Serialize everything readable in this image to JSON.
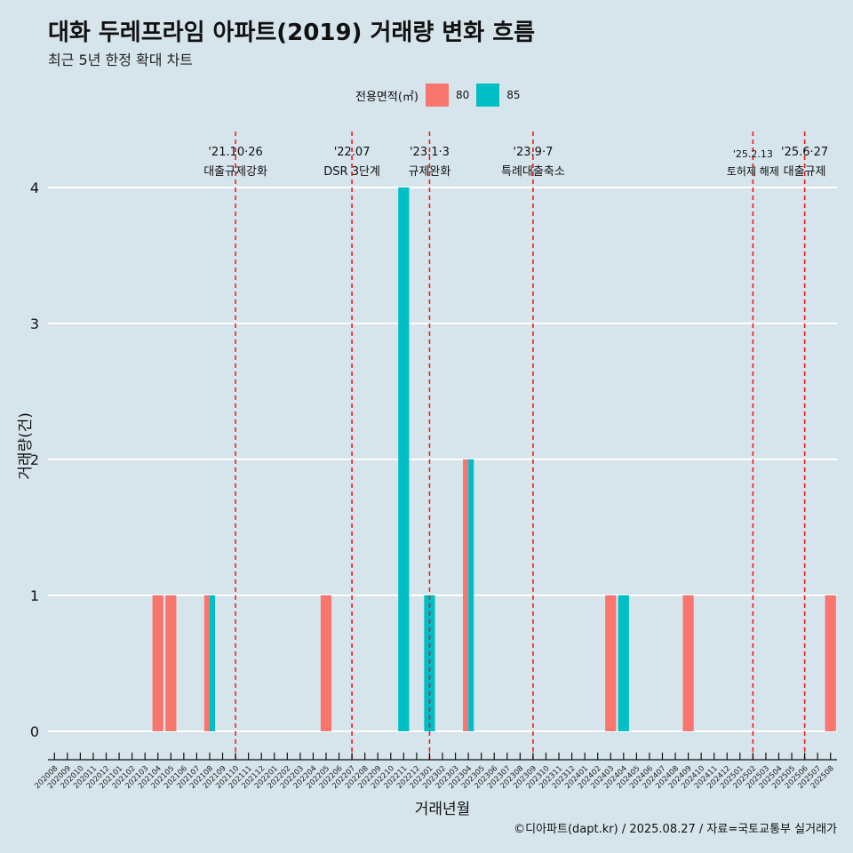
{
  "title": "대화 두레프라임 아파트(2019) 거래량 변화 흐름",
  "subtitle": "최근 5년 한정 확대 차트",
  "caption": "©디아파트(dapt.kr) / 2025.08.27 / 자료=국토교통부 실거래가",
  "legend": {
    "title": "전용면적(㎡)",
    "items": [
      {
        "label": "80",
        "color": "#f8766d"
      },
      {
        "label": "85",
        "color": "#00bfc4"
      }
    ]
  },
  "chart_data": {
    "type": "bar",
    "xlabel": "거래년월",
    "ylabel": "거래량(건)",
    "ylim": [
      0,
      4
    ],
    "yticks": [
      0,
      1,
      2,
      3,
      4
    ],
    "grid": "horizontal",
    "legend_position": "top",
    "categories": [
      "202008",
      "202009",
      "202010",
      "202011",
      "202012",
      "202101",
      "202102",
      "202103",
      "202104",
      "202105",
      "202106",
      "202107",
      "202108",
      "202109",
      "202110",
      "202111",
      "202112",
      "202201",
      "202202",
      "202203",
      "202204",
      "202205",
      "202206",
      "202207",
      "202208",
      "202209",
      "202210",
      "202211",
      "202212",
      "202301",
      "202302",
      "202303",
      "202304",
      "202305",
      "202306",
      "202307",
      "202308",
      "202309",
      "202310",
      "202311",
      "202312",
      "202401",
      "202402",
      "202403",
      "202404",
      "202405",
      "202406",
      "202407",
      "202408",
      "202409",
      "202410",
      "202411",
      "202412",
      "202501",
      "202502",
      "202503",
      "202504",
      "202505",
      "202506",
      "202507",
      "202508"
    ],
    "series": [
      {
        "name": "80",
        "color": "#f8766d",
        "values": [
          0,
          0,
          0,
          0,
          0,
          0,
          0,
          0,
          1,
          1,
          0,
          0,
          1,
          0,
          0,
          0,
          0,
          0,
          0,
          0,
          0,
          1,
          0,
          0,
          0,
          0,
          0,
          0,
          0,
          0,
          0,
          0,
          2,
          0,
          0,
          0,
          0,
          0,
          0,
          0,
          0,
          0,
          0,
          1,
          0,
          0,
          0,
          0,
          0,
          1,
          0,
          0,
          0,
          0,
          0,
          0,
          0,
          0,
          0,
          0,
          1
        ]
      },
      {
        "name": "85",
        "color": "#00bfc4",
        "values": [
          0,
          0,
          0,
          0,
          0,
          0,
          0,
          0,
          0,
          0,
          0,
          0,
          1,
          0,
          0,
          0,
          0,
          0,
          0,
          0,
          0,
          0,
          0,
          0,
          0,
          0,
          0,
          4,
          0,
          1,
          0,
          0,
          2,
          0,
          0,
          0,
          0,
          0,
          0,
          0,
          0,
          0,
          0,
          0,
          1,
          0,
          0,
          0,
          0,
          0,
          0,
          0,
          0,
          0,
          0,
          0,
          0,
          0,
          0,
          0,
          0
        ]
      }
    ],
    "annotations": [
      {
        "at": "202110",
        "date": "'21.10·26",
        "text": "대출규제강화"
      },
      {
        "at": "202207",
        "date": "'22.07",
        "text": "DSR 3단계"
      },
      {
        "at": "202301",
        "date": "'23.1·3",
        "text": "규제완화"
      },
      {
        "at": "202309",
        "date": "'23.9·7",
        "text": "특례대출축소"
      },
      {
        "at": "202502",
        "date": "'25.2.13",
        "text": "토허제 해제"
      },
      {
        "at": "202506",
        "date": "'25.6·27",
        "text": "대출규제"
      }
    ]
  }
}
